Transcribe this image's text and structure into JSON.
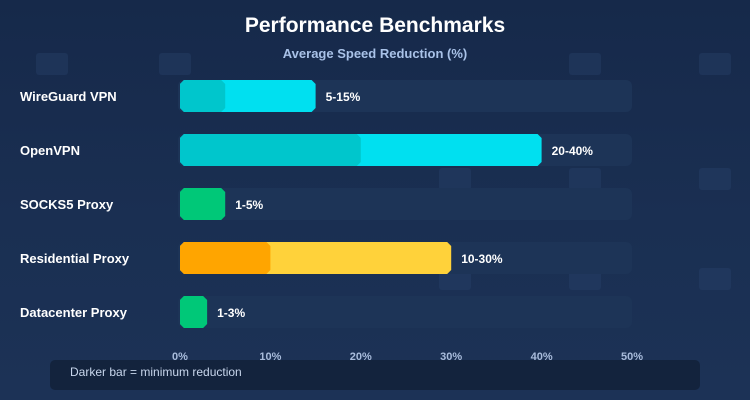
{
  "chart_data": {
    "type": "bar",
    "orientation": "horizontal",
    "stacked": false,
    "title": "Performance Benchmarks",
    "subtitle": "Average Speed Reduction (%)",
    "xlabel": "",
    "ylabel": "",
    "xlim": [
      0,
      50
    ],
    "x_ticks": [
      0,
      10,
      20,
      30,
      40,
      50
    ],
    "x_tick_labels": [
      "0%",
      "10%",
      "20%",
      "30%",
      "40%",
      "50%"
    ],
    "categories": [
      "WireGuard VPN",
      "OpenVPN",
      "SOCKS5 Proxy",
      "Residential Proxy",
      "Datacenter Proxy"
    ],
    "series": [
      {
        "name": "min",
        "values": [
          5,
          20,
          1,
          10,
          1
        ]
      },
      {
        "name": "max",
        "values": [
          15,
          40,
          5,
          30,
          3
        ]
      }
    ],
    "value_labels": [
      "5-15%",
      "20-40%",
      "1-5%",
      "10-30%",
      "1-3%"
    ],
    "colors": {
      "min": [
        "#00c6cc",
        "#00c6cc",
        "#00c878",
        "#ffa500",
        "#00c878"
      ],
      "max": [
        "#00e0f0",
        "#00e0f0",
        "#00c878",
        "#ffd23a",
        "#00c878"
      ],
      "track": "#1d3457"
    },
    "legend_note": "Darker bar = minimum reduction",
    "grid": false
  }
}
